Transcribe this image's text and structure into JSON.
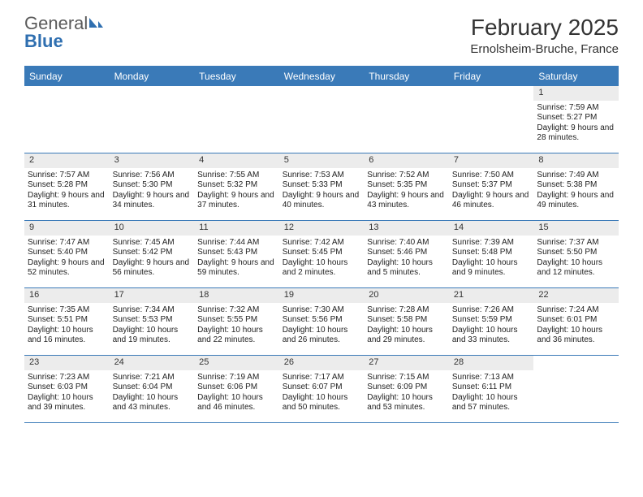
{
  "logo": {
    "text_general": "General",
    "text_blue": "Blue"
  },
  "title": "February 2025",
  "location": "Ernolsheim-Bruche, France",
  "colors": {
    "header_bg": "#3a7ab8",
    "header_text": "#ffffff",
    "daynum_bg": "#ececec",
    "border": "#3a7ab8",
    "logo_gray": "#5a5a5a",
    "logo_blue": "#2f6fb0"
  },
  "weekdays": [
    "Sunday",
    "Monday",
    "Tuesday",
    "Wednesday",
    "Thursday",
    "Friday",
    "Saturday"
  ],
  "grid": {
    "columns": 7,
    "rows": 5
  },
  "days": [
    {
      "n": "",
      "empty": true
    },
    {
      "n": "",
      "empty": true
    },
    {
      "n": "",
      "empty": true
    },
    {
      "n": "",
      "empty": true
    },
    {
      "n": "",
      "empty": true
    },
    {
      "n": "",
      "empty": true
    },
    {
      "n": "1",
      "sunrise": "Sunrise: 7:59 AM",
      "sunset": "Sunset: 5:27 PM",
      "daylight": "Daylight: 9 hours and 28 minutes."
    },
    {
      "n": "2",
      "sunrise": "Sunrise: 7:57 AM",
      "sunset": "Sunset: 5:28 PM",
      "daylight": "Daylight: 9 hours and 31 minutes."
    },
    {
      "n": "3",
      "sunrise": "Sunrise: 7:56 AM",
      "sunset": "Sunset: 5:30 PM",
      "daylight": "Daylight: 9 hours and 34 minutes."
    },
    {
      "n": "4",
      "sunrise": "Sunrise: 7:55 AM",
      "sunset": "Sunset: 5:32 PM",
      "daylight": "Daylight: 9 hours and 37 minutes."
    },
    {
      "n": "5",
      "sunrise": "Sunrise: 7:53 AM",
      "sunset": "Sunset: 5:33 PM",
      "daylight": "Daylight: 9 hours and 40 minutes."
    },
    {
      "n": "6",
      "sunrise": "Sunrise: 7:52 AM",
      "sunset": "Sunset: 5:35 PM",
      "daylight": "Daylight: 9 hours and 43 minutes."
    },
    {
      "n": "7",
      "sunrise": "Sunrise: 7:50 AM",
      "sunset": "Sunset: 5:37 PM",
      "daylight": "Daylight: 9 hours and 46 minutes."
    },
    {
      "n": "8",
      "sunrise": "Sunrise: 7:49 AM",
      "sunset": "Sunset: 5:38 PM",
      "daylight": "Daylight: 9 hours and 49 minutes."
    },
    {
      "n": "9",
      "sunrise": "Sunrise: 7:47 AM",
      "sunset": "Sunset: 5:40 PM",
      "daylight": "Daylight: 9 hours and 52 minutes."
    },
    {
      "n": "10",
      "sunrise": "Sunrise: 7:45 AM",
      "sunset": "Sunset: 5:42 PM",
      "daylight": "Daylight: 9 hours and 56 minutes."
    },
    {
      "n": "11",
      "sunrise": "Sunrise: 7:44 AM",
      "sunset": "Sunset: 5:43 PM",
      "daylight": "Daylight: 9 hours and 59 minutes."
    },
    {
      "n": "12",
      "sunrise": "Sunrise: 7:42 AM",
      "sunset": "Sunset: 5:45 PM",
      "daylight": "Daylight: 10 hours and 2 minutes."
    },
    {
      "n": "13",
      "sunrise": "Sunrise: 7:40 AM",
      "sunset": "Sunset: 5:46 PM",
      "daylight": "Daylight: 10 hours and 5 minutes."
    },
    {
      "n": "14",
      "sunrise": "Sunrise: 7:39 AM",
      "sunset": "Sunset: 5:48 PM",
      "daylight": "Daylight: 10 hours and 9 minutes."
    },
    {
      "n": "15",
      "sunrise": "Sunrise: 7:37 AM",
      "sunset": "Sunset: 5:50 PM",
      "daylight": "Daylight: 10 hours and 12 minutes."
    },
    {
      "n": "16",
      "sunrise": "Sunrise: 7:35 AM",
      "sunset": "Sunset: 5:51 PM",
      "daylight": "Daylight: 10 hours and 16 minutes."
    },
    {
      "n": "17",
      "sunrise": "Sunrise: 7:34 AM",
      "sunset": "Sunset: 5:53 PM",
      "daylight": "Daylight: 10 hours and 19 minutes."
    },
    {
      "n": "18",
      "sunrise": "Sunrise: 7:32 AM",
      "sunset": "Sunset: 5:55 PM",
      "daylight": "Daylight: 10 hours and 22 minutes."
    },
    {
      "n": "19",
      "sunrise": "Sunrise: 7:30 AM",
      "sunset": "Sunset: 5:56 PM",
      "daylight": "Daylight: 10 hours and 26 minutes."
    },
    {
      "n": "20",
      "sunrise": "Sunrise: 7:28 AM",
      "sunset": "Sunset: 5:58 PM",
      "daylight": "Daylight: 10 hours and 29 minutes."
    },
    {
      "n": "21",
      "sunrise": "Sunrise: 7:26 AM",
      "sunset": "Sunset: 5:59 PM",
      "daylight": "Daylight: 10 hours and 33 minutes."
    },
    {
      "n": "22",
      "sunrise": "Sunrise: 7:24 AM",
      "sunset": "Sunset: 6:01 PM",
      "daylight": "Daylight: 10 hours and 36 minutes."
    },
    {
      "n": "23",
      "sunrise": "Sunrise: 7:23 AM",
      "sunset": "Sunset: 6:03 PM",
      "daylight": "Daylight: 10 hours and 39 minutes."
    },
    {
      "n": "24",
      "sunrise": "Sunrise: 7:21 AM",
      "sunset": "Sunset: 6:04 PM",
      "daylight": "Daylight: 10 hours and 43 minutes."
    },
    {
      "n": "25",
      "sunrise": "Sunrise: 7:19 AM",
      "sunset": "Sunset: 6:06 PM",
      "daylight": "Daylight: 10 hours and 46 minutes."
    },
    {
      "n": "26",
      "sunrise": "Sunrise: 7:17 AM",
      "sunset": "Sunset: 6:07 PM",
      "daylight": "Daylight: 10 hours and 50 minutes."
    },
    {
      "n": "27",
      "sunrise": "Sunrise: 7:15 AM",
      "sunset": "Sunset: 6:09 PM",
      "daylight": "Daylight: 10 hours and 53 minutes."
    },
    {
      "n": "28",
      "sunrise": "Sunrise: 7:13 AM",
      "sunset": "Sunset: 6:11 PM",
      "daylight": "Daylight: 10 hours and 57 minutes."
    },
    {
      "n": "",
      "empty": true
    }
  ]
}
